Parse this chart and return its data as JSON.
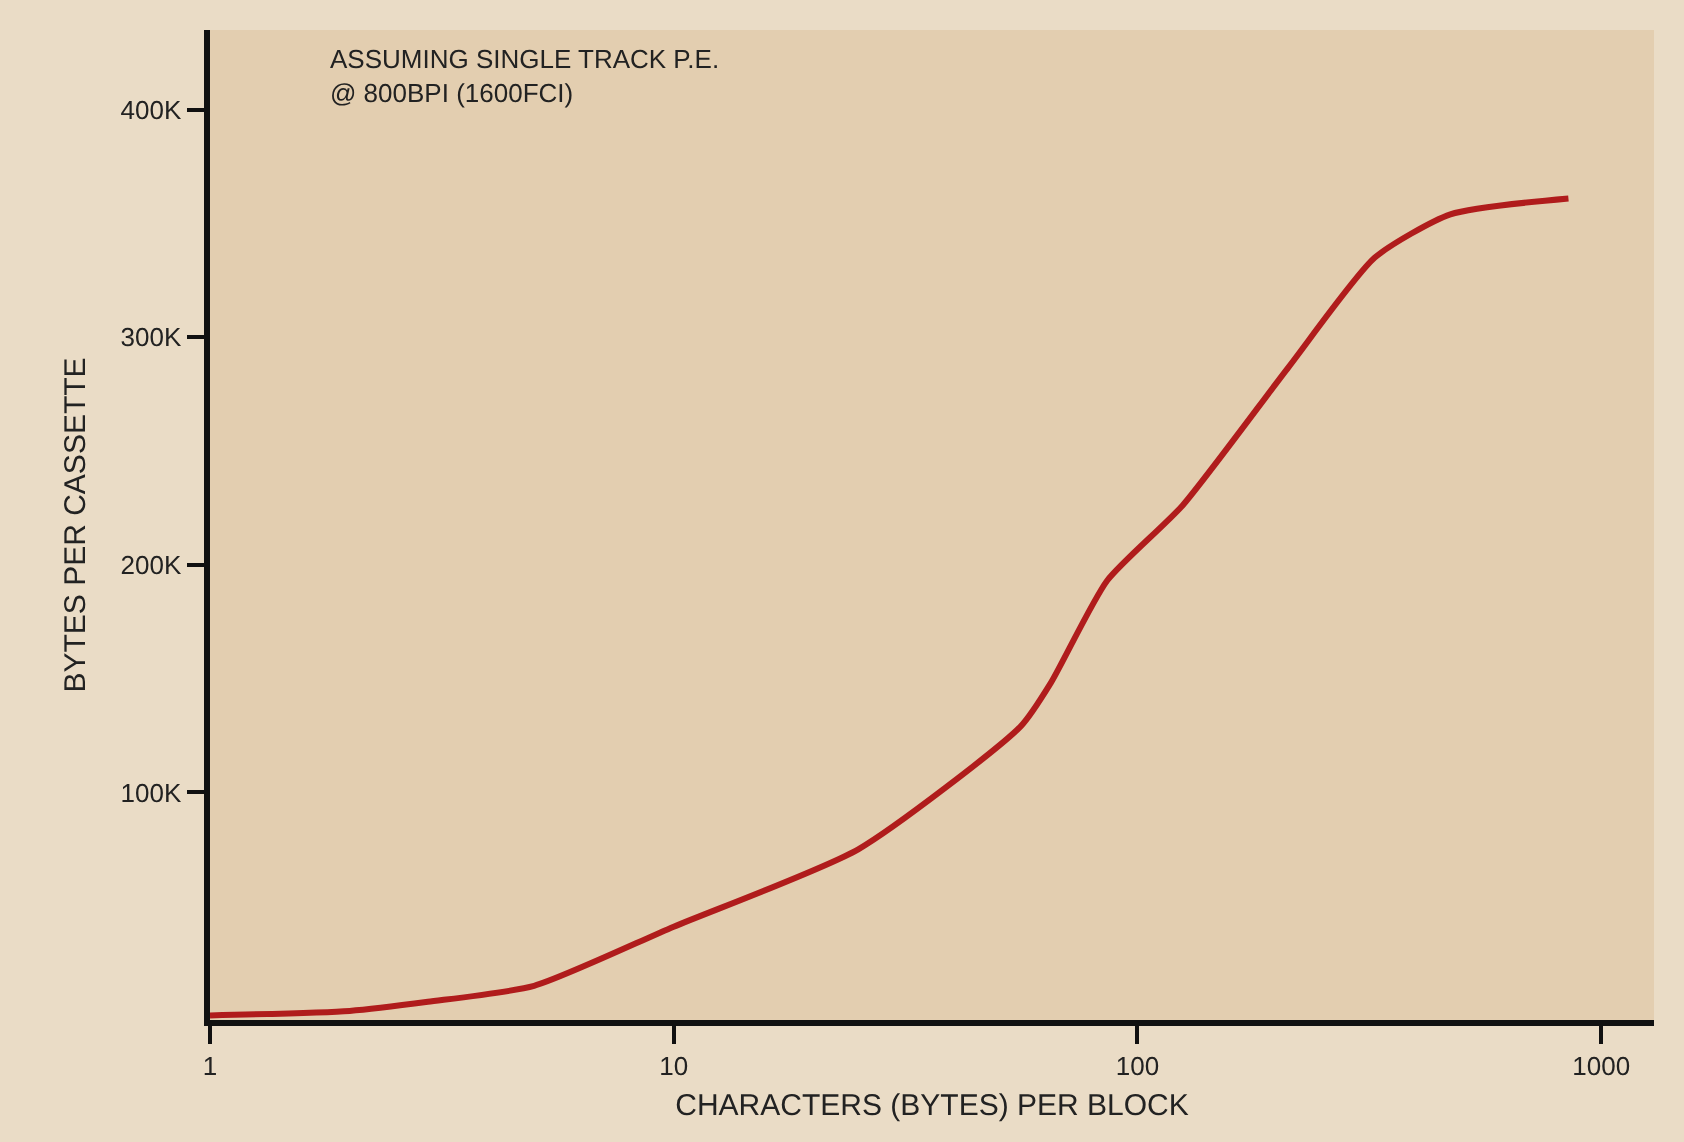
{
  "chart_data": {
    "type": "line",
    "xlabel": "CHARACTERS (BYTES) PER BLOCK",
    "ylabel": "BYTES PER CASSETTE",
    "annotations": [
      "ASSUMING SINGLE TRACK P.E.\n@ 800BPI (1600FCI)"
    ],
    "log": "x",
    "grid": false,
    "marker": "none",
    "line_style": "solid",
    "x": [
      1,
      2,
      2.95,
      5,
      10,
      25,
      56,
      65,
      86,
      125,
      212,
      325,
      473,
      850
    ],
    "series": [
      {
        "color": "#b01c1c",
        "values": [
          2000,
          4000,
          8000,
          15000,
          41000,
          75000,
          129000,
          148000,
          193000,
          226000,
          287000,
          335000,
          354000,
          361000
        ]
      }
    ],
    "xlim": [
      1,
      1300
    ],
    "xticks": [
      1,
      10,
      100,
      1000
    ],
    "ylim": [
      0,
      435000
    ],
    "yticks": [
      {
        "value": 100000,
        "label": "100K"
      },
      {
        "value": 200000,
        "label": "200K"
      },
      {
        "value": 300000,
        "label": "300K"
      },
      {
        "value": 400000,
        "label": "400K"
      }
    ]
  }
}
